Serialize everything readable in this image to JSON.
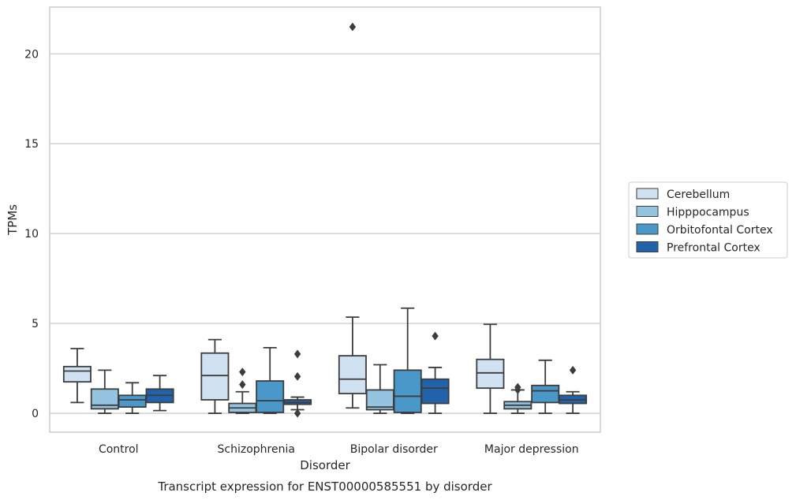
{
  "chart_data": {
    "type": "box",
    "title": "Transcript expression for ENST00000585551 by disorder",
    "xlabel": "Disorder",
    "ylabel": "TPMs",
    "ylim": [
      -1.05,
      22.6
    ],
    "yticks": [
      0,
      5,
      10,
      15,
      20
    ],
    "grid": true,
    "legend_position": "right",
    "categories": [
      "Control",
      "Schizophrenia",
      "Bipolar disorder",
      "Major depression"
    ],
    "series": [
      {
        "name": "Cerebellum",
        "color": "#d0e1f2",
        "boxes": [
          {
            "whisker_low": 0.6,
            "q1": 1.75,
            "median": 2.35,
            "q3": 2.6,
            "whisker_high": 3.6,
            "outliers": []
          },
          {
            "whisker_low": 0.0,
            "q1": 0.75,
            "median": 2.1,
            "q3": 3.35,
            "whisker_high": 4.1,
            "outliers": []
          },
          {
            "whisker_low": 0.3,
            "q1": 1.1,
            "median": 1.9,
            "q3": 3.2,
            "whisker_high": 5.35,
            "outliers": [
              21.5
            ]
          },
          {
            "whisker_low": 0.0,
            "q1": 1.4,
            "median": 2.25,
            "q3": 3.0,
            "whisker_high": 4.95,
            "outliers": []
          }
        ]
      },
      {
        "name": "Hipppocampus",
        "color": "#94c4df",
        "boxes": [
          {
            "whisker_low": 0.0,
            "q1": 0.25,
            "median": 0.45,
            "q3": 1.35,
            "whisker_high": 2.4,
            "outliers": []
          },
          {
            "whisker_low": 0.0,
            "q1": 0.05,
            "median": 0.3,
            "q3": 0.55,
            "whisker_high": 1.2,
            "outliers": [
              1.6,
              2.3
            ]
          },
          {
            "whisker_low": 0.0,
            "q1": 0.2,
            "median": 0.35,
            "q3": 1.3,
            "whisker_high": 2.7,
            "outliers": []
          },
          {
            "whisker_low": 0.0,
            "q1": 0.25,
            "median": 0.45,
            "q3": 0.65,
            "whisker_high": 1.3,
            "outliers": [
              1.3,
              1.45
            ]
          }
        ]
      },
      {
        "name": "Orbitofontal Cortex",
        "color": "#4a98c9",
        "boxes": [
          {
            "whisker_low": 0.0,
            "q1": 0.35,
            "median": 0.75,
            "q3": 1.0,
            "whisker_high": 1.7,
            "outliers": []
          },
          {
            "whisker_low": 0.0,
            "q1": 0.05,
            "median": 0.7,
            "q3": 1.8,
            "whisker_high": 3.65,
            "outliers": []
          },
          {
            "whisker_low": 0.0,
            "q1": 0.05,
            "median": 0.95,
            "q3": 2.4,
            "whisker_high": 5.85,
            "outliers": []
          },
          {
            "whisker_low": 0.0,
            "q1": 0.6,
            "median": 1.25,
            "q3": 1.55,
            "whisker_high": 2.95,
            "outliers": []
          }
        ]
      },
      {
        "name": "Prefrontal Cortex",
        "color": "#2163aa",
        "boxes": [
          {
            "whisker_low": 0.15,
            "q1": 0.6,
            "median": 1.0,
            "q3": 1.35,
            "whisker_high": 2.1,
            "outliers": []
          },
          {
            "whisker_low": 0.2,
            "q1": 0.5,
            "median": 0.6,
            "q3": 0.75,
            "whisker_high": 0.9,
            "outliers": [
              0.0,
              2.05,
              3.3
            ]
          },
          {
            "whisker_low": 0.0,
            "q1": 0.55,
            "median": 1.4,
            "q3": 1.9,
            "whisker_high": 2.55,
            "outliers": [
              4.3
            ]
          },
          {
            "whisker_low": 0.0,
            "q1": 0.55,
            "median": 0.75,
            "q3": 1.0,
            "whisker_high": 1.2,
            "outliers": [
              2.4
            ]
          }
        ]
      }
    ]
  }
}
